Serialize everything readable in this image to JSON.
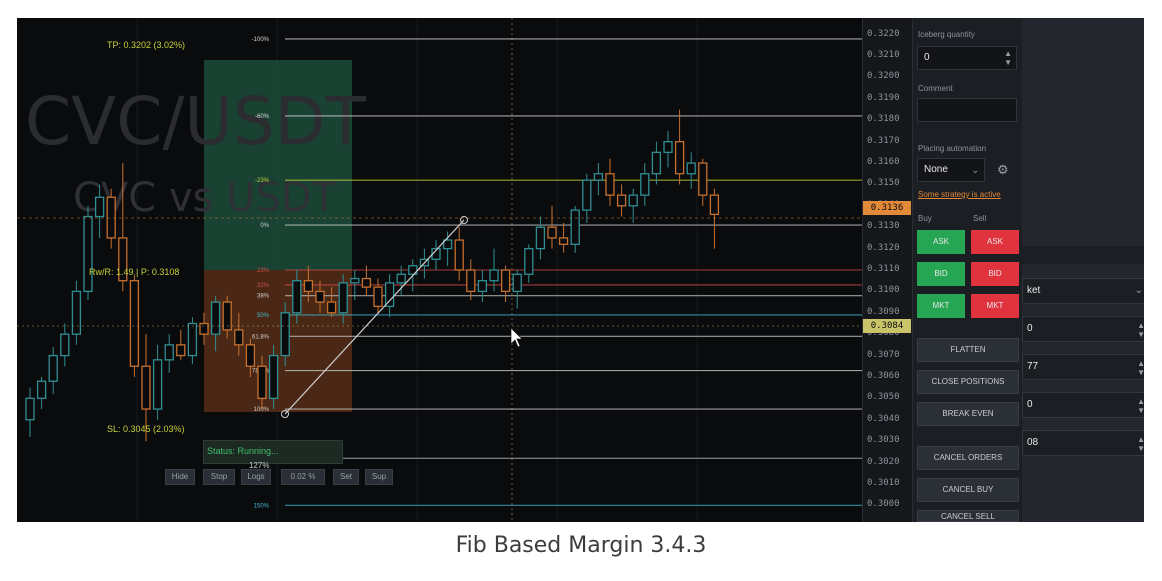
{
  "caption": "Fib Based Margin 3.4.3",
  "symbol": {
    "watermark": "CVC/USDT",
    "subtitle": "CVC vs USDT"
  },
  "overlay": {
    "tp_label": "TP: 0.3202 (3.02%)",
    "rwr_label": "Rw/R: 1.49 | P: 0.3108",
    "sl_label": "SL: 0.3045 (2.03%)",
    "status": "Status: Running...",
    "controls": [
      "Hide",
      "Stop",
      "Logs",
      "0.02 %",
      "Set",
      "Sup"
    ],
    "zoom": "127%"
  },
  "fib_levels": [
    {
      "label": "-100%",
      "price": 0.3218,
      "color": "#d8d8d8"
    },
    {
      "label": "-60%",
      "price": 0.3182,
      "color": "#d8d8d8"
    },
    {
      "label": "-23%",
      "price": 0.3152,
      "color": "#c9d33a"
    },
    {
      "label": "0%",
      "price": 0.3131,
      "color": "#cfcfcf"
    },
    {
      "label": "23%",
      "price": 0.311,
      "color": "#d94c4c"
    },
    {
      "label": "32%",
      "price": 0.3103,
      "color": "#d94c4c"
    },
    {
      "label": "38%",
      "price": 0.3098,
      "color": "#cfcfcf"
    },
    {
      "label": "50%",
      "price": 0.3089,
      "color": "#45b7d1"
    },
    {
      "label": "61.8%",
      "price": 0.3079,
      "color": "#cfcfcf"
    },
    {
      "label": "78.6%",
      "price": 0.3063,
      "color": "#cfcfcf"
    },
    {
      "label": "100%",
      "price": 0.3045,
      "color": "#cfcfcf"
    },
    {
      "label": "127%",
      "price": 0.3022,
      "color": "#cfcfcf"
    },
    {
      "label": "150%",
      "price": 0.3,
      "color": "#45b7d1"
    }
  ],
  "price_axis": {
    "ticks": [
      "0.3220",
      "0.3210",
      "0.3200",
      "0.3190",
      "0.3180",
      "0.3170",
      "0.3160",
      "0.3150",
      "0.3140",
      "0.3130",
      "0.3120",
      "0.3110",
      "0.3100",
      "0.3090",
      "0.3080",
      "0.3070",
      "0.3060",
      "0.3050",
      "0.3040",
      "0.3030",
      "0.3020",
      "0.3010",
      "0.3000"
    ],
    "current_price": "0.3136",
    "current_color": "#e3893a",
    "entry_price": "0.3084",
    "entry_color": "#c9c36a"
  },
  "chart_data": {
    "type": "candlestick",
    "ylim": [
      0.2995,
      0.3225
    ],
    "candles": [
      [
        0.304,
        0.3055,
        0.3032,
        0.305
      ],
      [
        0.305,
        0.306,
        0.3045,
        0.3058
      ],
      [
        0.3058,
        0.3074,
        0.3052,
        0.307
      ],
      [
        0.307,
        0.3085,
        0.3065,
        0.308
      ],
      [
        0.308,
        0.3105,
        0.3075,
        0.31
      ],
      [
        0.31,
        0.314,
        0.3096,
        0.3135
      ],
      [
        0.3135,
        0.315,
        0.3125,
        0.3144
      ],
      [
        0.3144,
        0.3148,
        0.312,
        0.3125
      ],
      [
        0.3125,
        0.316,
        0.31,
        0.3105
      ],
      [
        0.3105,
        0.3108,
        0.306,
        0.3065
      ],
      [
        0.3065,
        0.308,
        0.303,
        0.3045
      ],
      [
        0.3045,
        0.3075,
        0.304,
        0.3068
      ],
      [
        0.3068,
        0.308,
        0.3062,
        0.3075
      ],
      [
        0.3075,
        0.3082,
        0.3068,
        0.307
      ],
      [
        0.307,
        0.3088,
        0.3066,
        0.3085
      ],
      [
        0.3085,
        0.309,
        0.3075,
        0.308
      ],
      [
        0.308,
        0.3098,
        0.3072,
        0.3095
      ],
      [
        0.3095,
        0.3098,
        0.3078,
        0.3082
      ],
      [
        0.3082,
        0.309,
        0.307,
        0.3075
      ],
      [
        0.3075,
        0.3078,
        0.306,
        0.3065
      ],
      [
        0.3065,
        0.307,
        0.3045,
        0.305
      ],
      [
        0.305,
        0.3075,
        0.3045,
        0.307
      ],
      [
        0.307,
        0.3095,
        0.3065,
        0.309
      ],
      [
        0.309,
        0.311,
        0.3085,
        0.3105
      ],
      [
        0.3105,
        0.3112,
        0.3095,
        0.31
      ],
      [
        0.31,
        0.3105,
        0.309,
        0.3095
      ],
      [
        0.3095,
        0.3102,
        0.3088,
        0.309
      ],
      [
        0.309,
        0.3108,
        0.3085,
        0.3104
      ],
      [
        0.3104,
        0.311,
        0.3096,
        0.3106
      ],
      [
        0.3106,
        0.3112,
        0.3098,
        0.3102
      ],
      [
        0.3102,
        0.3106,
        0.309,
        0.3093
      ],
      [
        0.3093,
        0.3108,
        0.3088,
        0.3104
      ],
      [
        0.3104,
        0.3112,
        0.3098,
        0.3108
      ],
      [
        0.3108,
        0.3115,
        0.31,
        0.3112
      ],
      [
        0.3112,
        0.312,
        0.3106,
        0.3115
      ],
      [
        0.3115,
        0.3124,
        0.311,
        0.312
      ],
      [
        0.312,
        0.3128,
        0.3112,
        0.3124
      ],
      [
        0.3124,
        0.313,
        0.3105,
        0.311
      ],
      [
        0.311,
        0.3115,
        0.3096,
        0.31
      ],
      [
        0.31,
        0.311,
        0.3095,
        0.3105
      ],
      [
        0.3105,
        0.312,
        0.31,
        0.311
      ],
      [
        0.311,
        0.3112,
        0.3095,
        0.31
      ],
      [
        0.31,
        0.311,
        0.3092,
        0.3108
      ],
      [
        0.3108,
        0.3122,
        0.3104,
        0.312
      ],
      [
        0.312,
        0.3135,
        0.3115,
        0.313
      ],
      [
        0.313,
        0.314,
        0.312,
        0.3125
      ],
      [
        0.3125,
        0.3132,
        0.3118,
        0.3122
      ],
      [
        0.3122,
        0.314,
        0.3118,
        0.3138
      ],
      [
        0.3138,
        0.3155,
        0.3132,
        0.3152
      ],
      [
        0.3152,
        0.316,
        0.3145,
        0.3155
      ],
      [
        0.3155,
        0.3162,
        0.314,
        0.3145
      ],
      [
        0.3145,
        0.315,
        0.3135,
        0.314
      ],
      [
        0.314,
        0.3148,
        0.3132,
        0.3145
      ],
      [
        0.3145,
        0.316,
        0.314,
        0.3155
      ],
      [
        0.3155,
        0.317,
        0.315,
        0.3165
      ],
      [
        0.3165,
        0.3175,
        0.3158,
        0.317
      ],
      [
        0.317,
        0.3185,
        0.315,
        0.3155
      ],
      [
        0.3155,
        0.3165,
        0.3148,
        0.316
      ],
      [
        0.316,
        0.3162,
        0.314,
        0.3145
      ],
      [
        0.3145,
        0.3148,
        0.312,
        0.3136
      ]
    ],
    "up_color": "#2f8f93",
    "down_color": "#c7702d"
  },
  "order_panel": {
    "iceberg_label": "Iceberg quantity",
    "iceberg_value": "0",
    "comment_label": "Comment",
    "comment_value": "",
    "placing_label": "Placing automation",
    "placing_value": "None",
    "strategy_link": "Some strategy is active",
    "buy_label": "Buy",
    "sell_label": "Sell",
    "rows": [
      [
        "ASK",
        "ASK"
      ],
      [
        "BID",
        "BID"
      ],
      [
        "MKT",
        "MKT"
      ]
    ],
    "actions": [
      "FLATTEN",
      "CLOSE POSITIONS",
      "BREAK EVEN",
      "CANCEL ORDERS",
      "CANCEL BUY",
      "CANCEL SELL"
    ]
  },
  "far_panel": {
    "fields": [
      "ket",
      "0",
      "77",
      "0",
      "08"
    ]
  }
}
